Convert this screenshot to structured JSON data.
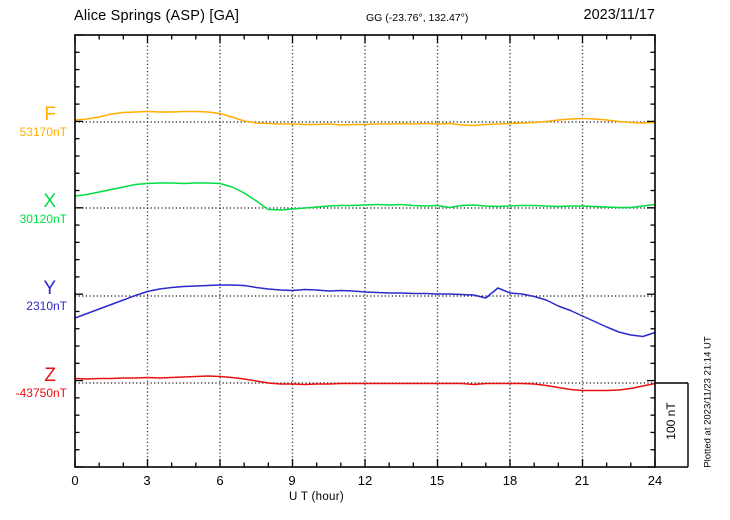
{
  "header": {
    "station": "Alice Springs (ASP)  [GA]",
    "coords": "GG (-23.76°, 132.47°)",
    "date": "2023/11/17"
  },
  "xaxis": {
    "label": "U T (hour)",
    "tick_labels": [
      "0",
      "3",
      "6",
      "9",
      "12",
      "15",
      "18",
      "21",
      "24"
    ]
  },
  "scale_bar": {
    "label": "100 nT"
  },
  "footer_note": "Plotted at 2023/11/23 21:14 UT",
  "chart_data": {
    "type": "line",
    "title": "Alice Springs (ASP) [GA] magnetogram",
    "date": "2023/11/17",
    "xlabel": "U T (hour)",
    "x_range": [
      0,
      24
    ],
    "x_step_hours": 0.5,
    "x_tick_labels": [
      "0",
      "3",
      "6",
      "9",
      "12",
      "15",
      "18",
      "21",
      "24"
    ],
    "grid": "dotted vertical gridlines every 3 hours; dotted horizontal baseline per channel",
    "legend_position": "left baseline labels",
    "scale_bar_nT": 100,
    "series": [
      {
        "name": "F",
        "baseline_nT": 53170,
        "baseline_label": "53170nT",
        "color": "#FFAE00",
        "offsets_nT": [
          2.3,
          3.5,
          5.8,
          9.3,
          11.0,
          11.6,
          12.2,
          11.6,
          11.6,
          12.2,
          12.2,
          11.6,
          9.9,
          5.8,
          1.2,
          -1.2,
          -1.7,
          -2.3,
          -2.3,
          -2.9,
          -2.9,
          -2.3,
          -3.5,
          -2.9,
          -2.9,
          -2.3,
          -2.3,
          -1.7,
          -2.3,
          -1.7,
          -2.3,
          -1.7,
          -3.5,
          -4.1,
          -2.9,
          -2.3,
          -1.7,
          -1.2,
          -0.6,
          0.6,
          2.3,
          3.5,
          4.1,
          3.5,
          2.3,
          0.6,
          -0.6,
          -1.2,
          -0.6
        ]
      },
      {
        "name": "X",
        "baseline_nT": 30120,
        "baseline_label": "30120nT",
        "color": "#00DD44",
        "offsets_nT": [
          14.0,
          15.7,
          18.6,
          21.5,
          24.4,
          27.3,
          28.5,
          29.1,
          29.1,
          28.5,
          29.1,
          29.1,
          28.5,
          24.4,
          17.4,
          8.1,
          -1.7,
          -2.3,
          -1.2,
          0.0,
          1.2,
          2.3,
          2.9,
          2.9,
          3.5,
          4.1,
          3.5,
          4.1,
          2.9,
          2.3,
          2.9,
          0.6,
          2.9,
          3.5,
          2.3,
          1.7,
          2.3,
          2.9,
          2.9,
          2.3,
          1.7,
          2.3,
          2.3,
          1.7,
          1.2,
          0.6,
          0.6,
          2.3,
          4.1
        ]
      },
      {
        "name": "Y",
        "baseline_nT": 2310,
        "baseline_label": "2310nT",
        "color": "#2A2ACC",
        "offsets_nT": [
          -25.6,
          -20.3,
          -15.1,
          -9.9,
          -4.7,
          0.6,
          5.2,
          8.1,
          9.9,
          11.0,
          11.6,
          12.2,
          12.8,
          12.8,
          12.2,
          9.9,
          8.1,
          7.0,
          6.4,
          7.6,
          7.0,
          5.8,
          6.4,
          5.8,
          4.7,
          4.1,
          3.5,
          3.5,
          2.9,
          2.9,
          2.3,
          2.3,
          1.7,
          1.2,
          -2.3,
          9.3,
          3.5,
          2.3,
          -0.6,
          -4.7,
          -11.6,
          -16.9,
          -23.3,
          -29.7,
          -36.0,
          -41.9,
          -45.3,
          -47.1,
          -42.4
        ]
      },
      {
        "name": "Z",
        "baseline_nT": -43750,
        "baseline_label": "-43750nT",
        "color": "#E81010",
        "offsets_nT": [
          5.2,
          4.7,
          5.2,
          5.2,
          5.8,
          5.8,
          6.4,
          5.8,
          6.4,
          7.0,
          7.6,
          8.1,
          7.6,
          6.4,
          4.7,
          2.3,
          0.0,
          -1.2,
          -1.2,
          -1.7,
          -1.2,
          -1.2,
          -0.6,
          -0.6,
          -0.6,
          -0.6,
          -0.6,
          -0.6,
          -0.6,
          -0.6,
          -0.6,
          -0.6,
          -0.6,
          -1.7,
          -0.6,
          -0.6,
          -0.6,
          -0.6,
          -1.2,
          -2.9,
          -5.2,
          -7.6,
          -8.7,
          -8.7,
          -8.7,
          -8.1,
          -6.4,
          -3.5,
          -0.6
        ]
      }
    ]
  }
}
